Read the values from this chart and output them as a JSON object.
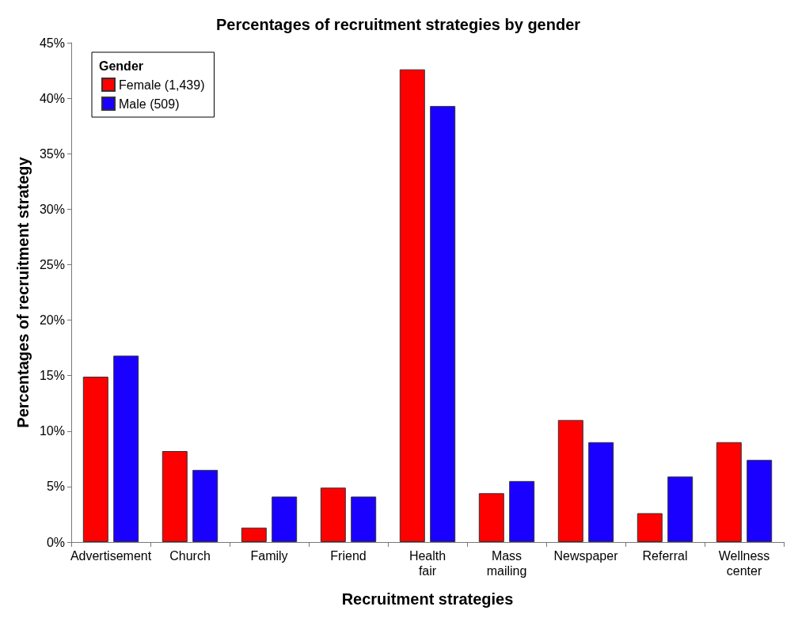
{
  "chart_data": {
    "type": "bar",
    "title": "Percentages of recruitment strategies by gender",
    "xlabel": "Recruitment strategies",
    "ylabel": "Percentages of recruitment strategy",
    "legend_title": "Gender",
    "legend": "top left",
    "grid": false,
    "categories": [
      "Advertisement",
      "Church",
      "Family",
      "Friend",
      "Health\nfair",
      "Mass\nmailing",
      "Newspaper",
      "Referral",
      "Wellness\ncenter"
    ],
    "series": [
      {
        "name": "Female (1,439)",
        "color": "#ff0000",
        "values": [
          14.9,
          8.2,
          1.3,
          4.9,
          42.6,
          4.4,
          11.0,
          2.6,
          9.0
        ]
      },
      {
        "name": "Male (509)",
        "color": "#1a00ff",
        "values": [
          16.8,
          6.5,
          4.1,
          4.1,
          39.3,
          5.5,
          9.0,
          5.9,
          7.4
        ]
      }
    ],
    "ylim": [
      0,
      45
    ],
    "yticks": [
      {
        "value": 0,
        "label": "0%"
      },
      {
        "value": 5,
        "label": "5%"
      },
      {
        "value": 10,
        "label": "10%"
      },
      {
        "value": 15,
        "label": "15%"
      },
      {
        "value": 20,
        "label": "20%"
      },
      {
        "value": 25,
        "label": "25%"
      },
      {
        "value": 30,
        "label": "30%"
      },
      {
        "value": 35,
        "label": "35%"
      },
      {
        "value": 40,
        "label": "40%"
      },
      {
        "value": 45,
        "label": "45%"
      }
    ]
  }
}
